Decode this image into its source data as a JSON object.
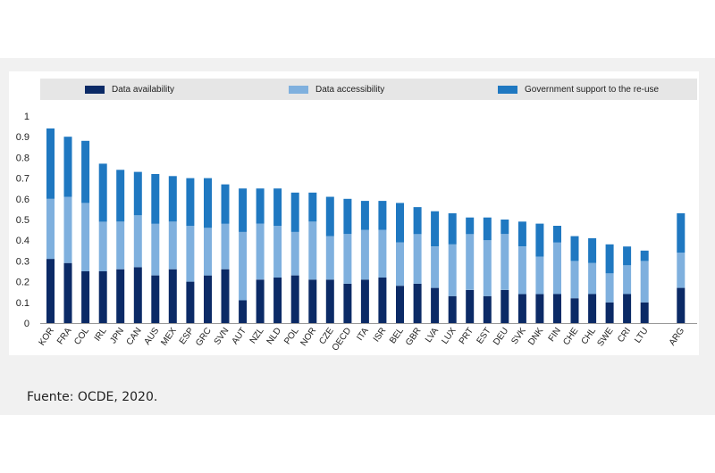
{
  "legend": {
    "items": [
      {
        "label": "Data availability",
        "color": "#0b2a66"
      },
      {
        "label": "Data accessibility",
        "color": "#7fb0de"
      },
      {
        "label": "Government support to the re-use",
        "color": "#1f78c1"
      }
    ]
  },
  "source": "Fuente: OCDE, 2020.",
  "chart_data": {
    "type": "bar",
    "stacked": true,
    "ylim": [
      0,
      1
    ],
    "yticks": [
      "0",
      "0.1",
      "0.2",
      "0.3",
      "0.4",
      "0.5",
      "0.6",
      "0.7",
      "0.8",
      "0.9",
      "1"
    ],
    "legend_position": "top",
    "categories": [
      "KOR",
      "FRA",
      "COL",
      "IRL",
      "JPN",
      "CAN",
      "AUS",
      "MEX",
      "ESP",
      "GRC",
      "SVN",
      "AUT",
      "NZL",
      "NLD",
      "POL",
      "NOR",
      "CZE",
      "OECD",
      "ITA",
      "ISR",
      "BEL",
      "GBR",
      "LVA",
      "LUX",
      "PRT",
      "EST",
      "DEU",
      "SVK",
      "DNK",
      "FIN",
      "CHE",
      "CHL",
      "SWE",
      "CRI",
      "LTU",
      "ARG"
    ],
    "series": [
      {
        "name": "Data availability",
        "values": [
          0.31,
          0.29,
          0.25,
          0.25,
          0.26,
          0.27,
          0.23,
          0.26,
          0.2,
          0.23,
          0.26,
          0.11,
          0.21,
          0.22,
          0.23,
          0.21,
          0.21,
          0.19,
          0.21,
          0.22,
          0.18,
          0.19,
          0.17,
          0.13,
          0.16,
          0.13,
          0.16,
          0.14,
          0.14,
          0.14,
          0.12,
          0.14,
          0.1,
          0.14,
          0.1,
          0.17
        ]
      },
      {
        "name": "Data accessibility",
        "values": [
          0.29,
          0.32,
          0.33,
          0.24,
          0.23,
          0.25,
          0.25,
          0.23,
          0.27,
          0.23,
          0.22,
          0.33,
          0.27,
          0.25,
          0.21,
          0.28,
          0.21,
          0.24,
          0.24,
          0.23,
          0.21,
          0.24,
          0.2,
          0.25,
          0.27,
          0.27,
          0.27,
          0.23,
          0.18,
          0.25,
          0.18,
          0.15,
          0.14,
          0.14,
          0.2,
          0.17
        ]
      },
      {
        "name": "Government support to the re-use",
        "values": [
          0.34,
          0.29,
          0.3,
          0.28,
          0.25,
          0.21,
          0.24,
          0.22,
          0.23,
          0.24,
          0.19,
          0.21,
          0.17,
          0.18,
          0.19,
          0.14,
          0.19,
          0.17,
          0.14,
          0.14,
          0.19,
          0.13,
          0.17,
          0.15,
          0.08,
          0.11,
          0.07,
          0.12,
          0.16,
          0.08,
          0.12,
          0.12,
          0.14,
          0.09,
          0.05,
          0.19
        ]
      }
    ]
  }
}
